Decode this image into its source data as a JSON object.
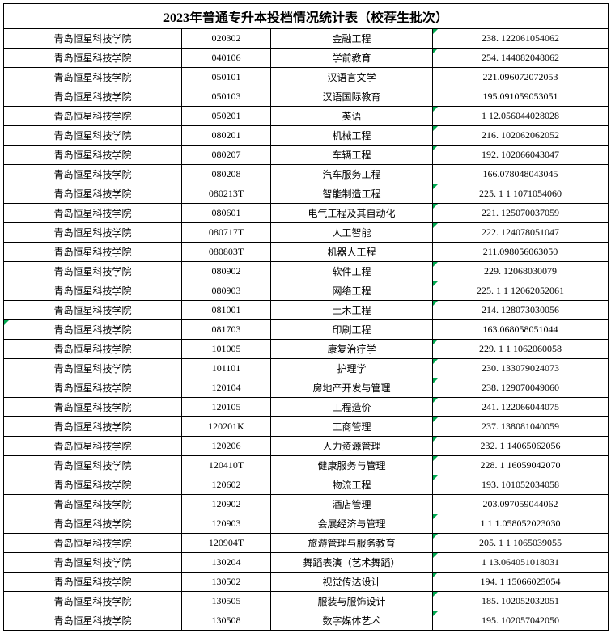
{
  "title": "2023年普通专升本投档情况统计表（校荐生批次）",
  "school": "青岛恒星科技学院",
  "columns": [
    "school",
    "code",
    "major",
    "score"
  ],
  "rows": [
    {
      "code": "020302",
      "major": "金融工程",
      "score": "238. 122061054062"
    },
    {
      "code": "040106",
      "major": "学前教育",
      "score": "254. 144082048062"
    },
    {
      "code": "050101",
      "major": "汉语言文学",
      "score": "221.096072072053"
    },
    {
      "code": "050103",
      "major": "汉语国际教育",
      "score": "195.091059053051"
    },
    {
      "code": "050201",
      "major": "英语",
      "score": "1 12.056044028028"
    },
    {
      "code": "080201",
      "major": "机械工程",
      "score": "216. 102062062052"
    },
    {
      "code": "080207",
      "major": "车辆工程",
      "score": "192. 102066043047"
    },
    {
      "code": "080208",
      "major": "汽车服务工程",
      "score": "166.078048043045"
    },
    {
      "code": "080213T",
      "major": "智能制造工程",
      "score": "225. 1 1 1071054060"
    },
    {
      "code": "080601",
      "major": "电气工程及其自动化",
      "score": "221. 125070037059"
    },
    {
      "code": "080717T",
      "major": "人工智能",
      "score": "222. 124078051047"
    },
    {
      "code": "080803T",
      "major": "机器人工程",
      "score": "211.098056063050"
    },
    {
      "code": "080902",
      "major": "软件工程",
      "score": "229. 12068030079"
    },
    {
      "code": "080903",
      "major": "网络工程",
      "score": "225. 1 1 12062052061"
    },
    {
      "code": "081001",
      "major": "土木工程",
      "score": "214. 128073030056"
    },
    {
      "code": "081703",
      "major": "印刷工程",
      "score": "163.068058051044"
    },
    {
      "code": "101005",
      "major": "康复治疗学",
      "score": "229. 1 1 1062060058"
    },
    {
      "code": "101101",
      "major": "护理学",
      "score": "230. 133079024073"
    },
    {
      "code": "120104",
      "major": "房地产开发与管理",
      "score": "238. 129070049060"
    },
    {
      "code": "120105",
      "major": "工程造价",
      "score": "241. 122066044075"
    },
    {
      "code": "120201K",
      "major": "工商管理",
      "score": "237. 138081040059"
    },
    {
      "code": "120206",
      "major": "人力资源管理",
      "score": "232. 1 14065062056"
    },
    {
      "code": "120410T",
      "major": "健康服务与管理",
      "score": "228. 1 16059042070"
    },
    {
      "code": "120602",
      "major": "物流工程",
      "score": "193. 101052034058"
    },
    {
      "code": "120902",
      "major": "酒店管理",
      "score": "203.097059044062"
    },
    {
      "code": "120903",
      "major": "会展经济与管理",
      "score": "1 1 1.058052023030"
    },
    {
      "code": "120904T",
      "major": "旅游管理与服务教育",
      "score": "205. 1 1 1065039055"
    },
    {
      "code": "130204",
      "major": "舞蹈表演（艺术舞蹈）",
      "score": "1 13.064051018031"
    },
    {
      "code": "130502",
      "major": "视觉传达设计",
      "score": "194. 1 15066025054"
    },
    {
      "code": "130505",
      "major": "服装与服饰设计",
      "score": "185. 102052032051"
    },
    {
      "code": "130508",
      "major": "数字媒体艺术",
      "score": "195. 102057042050"
    }
  ],
  "greenMarkRowsColA": [
    15
  ],
  "greenMarkRowsColD": [
    0,
    1,
    4,
    5,
    6,
    8,
    9,
    10,
    12,
    13,
    14,
    16,
    17,
    18,
    19,
    20,
    21,
    22,
    23,
    25,
    26,
    27,
    28,
    29,
    30
  ]
}
